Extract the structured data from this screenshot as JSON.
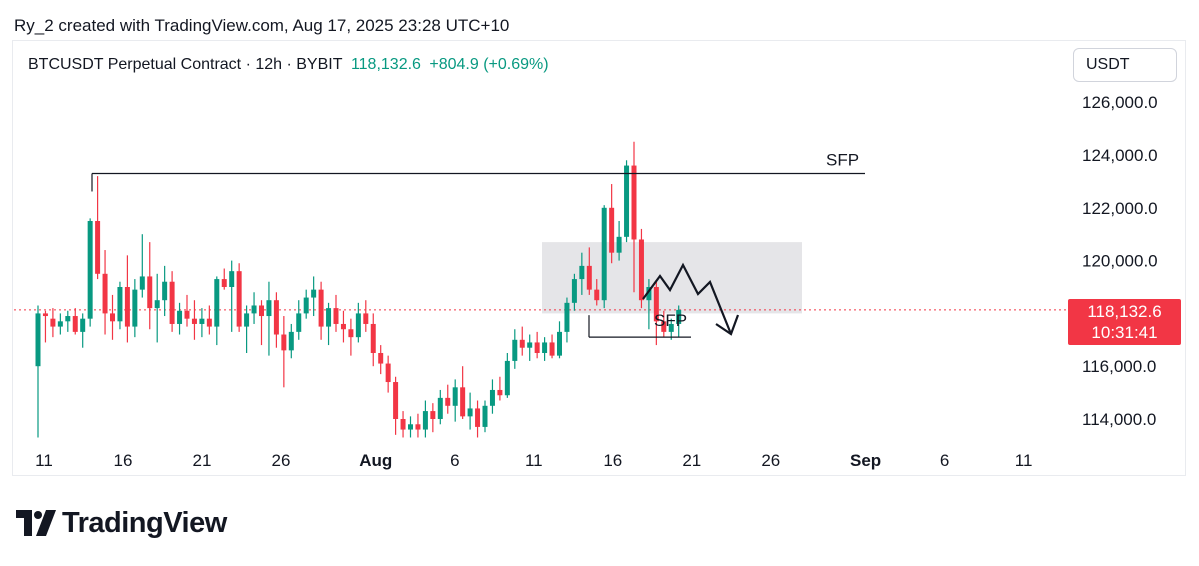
{
  "credit": "Ry_2 created with TradingView.com, Aug 17, 2025 23:28 UTC+10",
  "header": {
    "symbol": "BTCUSDT Perpetual Contract · 12h · BYBIT",
    "last_price": "118,132.6",
    "change": "+804.9 (+0.69%)"
  },
  "currency_button": "USDT",
  "price_tag": {
    "price": "118,132.6",
    "countdown": "10:31:41"
  },
  "brand": "TradingView",
  "colors": {
    "up": "#089981",
    "down": "#f23645",
    "zone": "#e0e0e4",
    "text": "#131722"
  },
  "chart_data": {
    "type": "candlestick",
    "title": "BTCUSDT Perpetual Contract · 12h · BYBIT",
    "interval": "12h",
    "ylim": [
      113000,
      127000
    ],
    "y_ticks": [
      114000,
      116000,
      118000,
      120000,
      122000,
      124000,
      126000
    ],
    "y_tick_labels": [
      "114,000.0",
      "116,000.0",
      "118,000.0",
      "120,000.0",
      "122,000.0",
      "124,000.0",
      "126,000.0"
    ],
    "x_tick_labels": [
      {
        "day": 11,
        "label": "11"
      },
      {
        "day": 16,
        "label": "16"
      },
      {
        "day": 21,
        "label": "21"
      },
      {
        "day": 26,
        "label": "26"
      },
      {
        "day": 32,
        "label": "Aug",
        "bold": true
      },
      {
        "day": 37,
        "label": "6"
      },
      {
        "day": 42,
        "label": "11"
      },
      {
        "day": 47,
        "label": "16"
      },
      {
        "day": 52,
        "label": "21"
      },
      {
        "day": 57,
        "label": "26"
      },
      {
        "day": 63,
        "label": "Sep",
        "bold": true
      },
      {
        "day": 68,
        "label": "6"
      },
      {
        "day": 73,
        "label": "11"
      }
    ],
    "x_note": "day index: 1 = Jul 1; 32 = Aug 1; 63 = Sep 1",
    "last_price": 118132.6,
    "candles_ohlc": [
      [
        116000,
        118300,
        113300,
        118000
      ],
      [
        118000,
        118100,
        116900,
        117900
      ],
      [
        117800,
        118200,
        117100,
        117500
      ],
      [
        117500,
        118000,
        117200,
        117700
      ],
      [
        117700,
        118100,
        117300,
        117900
      ],
      [
        117900,
        118200,
        117200,
        117300
      ],
      [
        117300,
        118000,
        116700,
        117800
      ],
      [
        117800,
        121600,
        117500,
        121500
      ],
      [
        121500,
        123200,
        119300,
        119500
      ],
      [
        119500,
        120400,
        117200,
        118000
      ],
      [
        118000,
        118700,
        117000,
        117700
      ],
      [
        117700,
        119200,
        117400,
        119000
      ],
      [
        119000,
        120200,
        116900,
        117500
      ],
      [
        117500,
        119300,
        117100,
        118900
      ],
      [
        118900,
        121000,
        118600,
        119400
      ],
      [
        119400,
        120700,
        117400,
        118200
      ],
      [
        118200,
        119500,
        116900,
        118500
      ],
      [
        118500,
        119800,
        117900,
        119200
      ],
      [
        119200,
        119600,
        117300,
        117600
      ],
      [
        117600,
        118400,
        117200,
        118100
      ],
      [
        118100,
        118700,
        117500,
        117800
      ],
      [
        117800,
        118500,
        117000,
        117600
      ],
      [
        117600,
        118200,
        117100,
        117800
      ],
      [
        117800,
        118300,
        117200,
        117500
      ],
      [
        117500,
        119400,
        116800,
        119300
      ],
      [
        119300,
        119700,
        118900,
        119000
      ],
      [
        119000,
        120000,
        117300,
        119600
      ],
      [
        119600,
        119900,
        117300,
        117500
      ],
      [
        117500,
        118300,
        116500,
        118000
      ],
      [
        118000,
        118800,
        117600,
        118300
      ],
      [
        118300,
        118500,
        116800,
        117900
      ],
      [
        117900,
        119200,
        116400,
        118500
      ],
      [
        118500,
        118800,
        116700,
        117200
      ],
      [
        117200,
        117900,
        115200,
        116600
      ],
      [
        116600,
        117600,
        116300,
        117300
      ],
      [
        117300,
        118500,
        117000,
        118000
      ],
      [
        118000,
        118900,
        117800,
        118600
      ],
      [
        118600,
        119400,
        117900,
        118900
      ],
      [
        118900,
        119200,
        117000,
        117500
      ],
      [
        117500,
        118400,
        116800,
        118200
      ],
      [
        118200,
        118700,
        117300,
        117600
      ],
      [
        117600,
        118100,
        116900,
        117400
      ],
      [
        117400,
        117800,
        116400,
        117100
      ],
      [
        117100,
        118400,
        116900,
        118000
      ],
      [
        118000,
        118500,
        117300,
        117600
      ],
      [
        117600,
        118000,
        116000,
        116500
      ],
      [
        116500,
        116800,
        115700,
        116100
      ],
      [
        116100,
        116400,
        115000,
        115400
      ],
      [
        115400,
        115600,
        113400,
        114000
      ],
      [
        114000,
        114300,
        113300,
        113600
      ],
      [
        113600,
        114100,
        113300,
        113800
      ],
      [
        113800,
        114200,
        113300,
        113600
      ],
      [
        113600,
        114700,
        113300,
        114300
      ],
      [
        114300,
        114600,
        113500,
        114000
      ],
      [
        114000,
        115100,
        113800,
        114800
      ],
      [
        114800,
        115300,
        114200,
        114500
      ],
      [
        114500,
        115500,
        113900,
        115200
      ],
      [
        115200,
        116000,
        114000,
        114100
      ],
      [
        114100,
        115000,
        113600,
        114400
      ],
      [
        114400,
        114700,
        113300,
        113700
      ],
      [
        113700,
        114700,
        113500,
        114500
      ],
      [
        114500,
        115500,
        114200,
        115100
      ],
      [
        115100,
        115600,
        114700,
        114900
      ],
      [
        114900,
        116500,
        114800,
        116200
      ],
      [
        116200,
        117400,
        115900,
        117000
      ],
      [
        117000,
        117500,
        116400,
        116700
      ],
      [
        116700,
        117200,
        116200,
        116900
      ],
      [
        116900,
        117300,
        116300,
        116500
      ],
      [
        116500,
        117100,
        116200,
        116900
      ],
      [
        116900,
        117200,
        116300,
        116400
      ],
      [
        116400,
        117700,
        116300,
        117300
      ],
      [
        117300,
        118600,
        116900,
        118400
      ],
      [
        118400,
        119500,
        118100,
        119300
      ],
      [
        119300,
        120300,
        118700,
        119800
      ],
      [
        119800,
        120500,
        118700,
        118900
      ],
      [
        118900,
        119300,
        118300,
        118500
      ],
      [
        118500,
        122100,
        118200,
        122000
      ],
      [
        122000,
        122900,
        119900,
        120300
      ],
      [
        120300,
        121500,
        120000,
        120900
      ],
      [
        120900,
        123800,
        120700,
        123600
      ],
      [
        123600,
        124500,
        118800,
        120800
      ],
      [
        120800,
        121200,
        118200,
        118500
      ],
      [
        118500,
        119300,
        117400,
        119000
      ],
      [
        119000,
        119200,
        116800,
        117700
      ],
      [
        117700,
        118100,
        117100,
        117300
      ],
      [
        117300,
        117800,
        117000,
        117600
      ],
      [
        117600,
        118300,
        117100,
        118132.6
      ]
    ],
    "annotations": [
      {
        "type": "horizontal-level",
        "label": "SFP",
        "price": 123300
      },
      {
        "type": "horizontal-level",
        "label": "SFP",
        "price": 117100
      },
      {
        "type": "zone",
        "price_from": 118000,
        "price_to": 120700
      },
      {
        "type": "projected-path",
        "shape": "zigzag",
        "direction": "down"
      }
    ]
  }
}
